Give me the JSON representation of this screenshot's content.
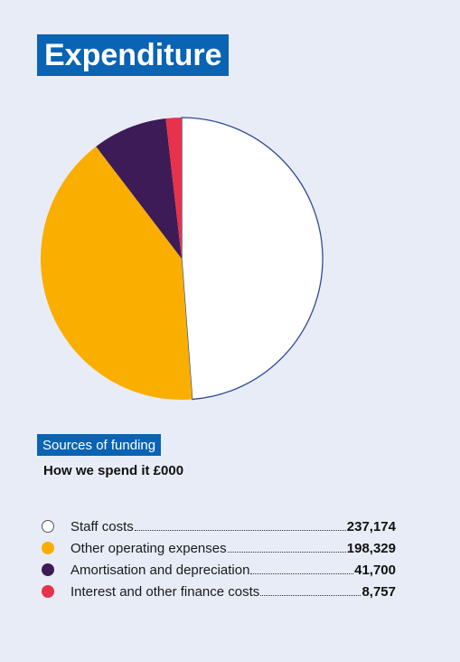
{
  "title": "Expenditure",
  "section_label": "Sources of funding",
  "subtitle": "How we spend it £000",
  "chart_data": {
    "type": "pie",
    "slices": [
      {
        "label": "Staff costs",
        "value": 237174,
        "value_label": "237,174",
        "color": "#ffffff",
        "outline": "#2f4a9a"
      },
      {
        "label": "Other operating expenses",
        "value": 198329,
        "value_label": "198,329",
        "color": "#f9ae00"
      },
      {
        "label": "Amortisation and depreciation",
        "value": 41700,
        "value_label": "41,700",
        "color": "#3d1b57"
      },
      {
        "label": "Interest and other finance costs",
        "value": 8757,
        "value_label": "8,757",
        "color": "#e8314a"
      }
    ],
    "start": "12 o'clock",
    "direction": "clockwise",
    "legend_position": "bottom"
  }
}
